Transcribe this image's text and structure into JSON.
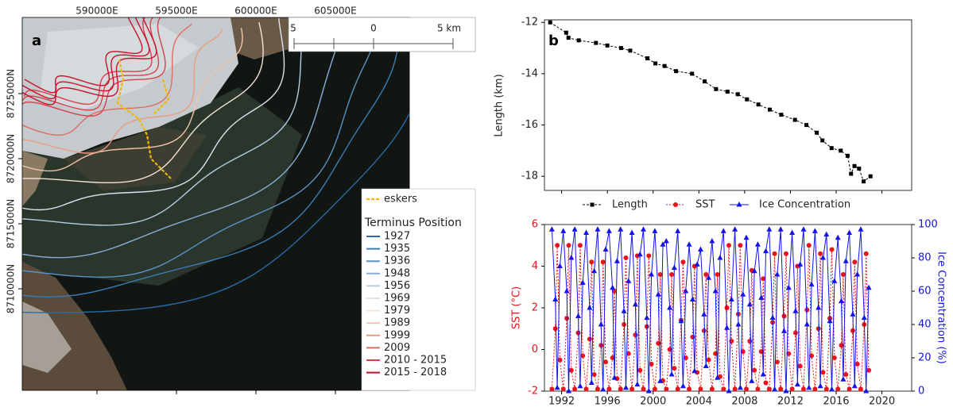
{
  "chart_data": [
    {
      "type": "map",
      "panel_label": "a",
      "xlim": [
        585300,
        609650
      ],
      "ylim": [
        8702200,
        8730850
      ],
      "xticks": [
        {
          "value": 590000,
          "label": "590000E"
        },
        {
          "value": 595000,
          "label": "595000E"
        },
        {
          "value": 600000,
          "label": "600000E"
        },
        {
          "value": 605000,
          "label": "605000E"
        }
      ],
      "yticks": [
        {
          "value": 8725000,
          "label": "8725000N"
        },
        {
          "value": 8720000,
          "label": "8720000N"
        },
        {
          "value": 8715000,
          "label": "8715000N"
        },
        {
          "value": 8710000,
          "label": "8710000N"
        }
      ],
      "scale_bar": [
        "5",
        "0",
        "5 km"
      ],
      "eskers": {
        "name": "eskers",
        "color": "#f2b705"
      },
      "legend_title": "Terminus Position",
      "series": [
        {
          "name": "1927",
          "color": "#2a6aa5"
        },
        {
          "name": "1935",
          "color": "#3a7db8"
        },
        {
          "name": "1936",
          "color": "#5b93c6"
        },
        {
          "name": "1948",
          "color": "#86afd6"
        },
        {
          "name": "1956",
          "color": "#b3cde3"
        },
        {
          "name": "1969",
          "color": "#d9e5ee"
        },
        {
          "name": "1979",
          "color": "#f4e3d7"
        },
        {
          "name": "1989",
          "color": "#f2c4a8"
        },
        {
          "name": "1999",
          "color": "#eb9b80"
        },
        {
          "name": "2009",
          "color": "#e06c62"
        },
        {
          "name": "2010 - 2015",
          "color": "#d6404f"
        },
        {
          "name": "2015 - 2018",
          "color": "#c8102e"
        }
      ]
    },
    {
      "type": "line",
      "panel_label": "b",
      "y_label": "Length (km)",
      "xlim": [
        1990.5,
        2022.6
      ],
      "ylim": [
        -18.55,
        -11.9
      ],
      "yticks": [
        -12,
        -14,
        -16,
        -18
      ],
      "x": [
        1991.0,
        1992.4,
        1992.6,
        1993.5,
        1995.0,
        1996.0,
        1997.2,
        1998.0,
        1999.5,
        2000.2,
        2001.0,
        2002.0,
        2003.4,
        2004.5,
        2005.5,
        2006.5,
        2007.4,
        2008.2,
        2009.2,
        2010.2,
        2011.2,
        2012.4,
        2013.4,
        2014.3,
        2014.8,
        2015.6,
        2016.4,
        2017.0,
        2017.3,
        2017.6,
        2018.0,
        2018.4,
        2019.0
      ],
      "series": [
        {
          "name": "Length",
          "color": "#000000",
          "values": [
            -12.0,
            -12.4,
            -12.6,
            -12.7,
            -12.8,
            -12.9,
            -13.0,
            -13.1,
            -13.4,
            -13.6,
            -13.7,
            -13.9,
            -14.0,
            -14.3,
            -14.6,
            -14.7,
            -14.8,
            -15.0,
            -15.2,
            -15.4,
            -15.6,
            -15.8,
            -16.0,
            -16.3,
            -16.6,
            -16.9,
            -17.0,
            -17.2,
            -17.9,
            -17.6,
            -17.7,
            -18.2,
            -18.0
          ]
        }
      ]
    },
    {
      "type": "dual",
      "y_label": "SST (°C)",
      "y2_label": "Ice Concentration (%)",
      "xlim": [
        1990.5,
        2022.6
      ],
      "xticks": [
        1992,
        1996,
        2000,
        2004,
        2008,
        2012,
        2016,
        2020
      ],
      "ylim": [
        -2,
        6
      ],
      "yticks": [
        -2,
        0,
        2,
        4,
        6
      ],
      "y2lim": [
        0,
        100
      ],
      "y2ticks": [
        0,
        20,
        40,
        60,
        80,
        100
      ],
      "x": [
        1991.15,
        1991.45,
        1991.62,
        1991.85,
        1992.15,
        1992.45,
        1992.62,
        1992.85,
        1993.15,
        1993.45,
        1993.62,
        1993.85,
        1994.15,
        1994.45,
        1994.62,
        1994.85,
        1995.15,
        1995.45,
        1995.62,
        1995.85,
        1996.15,
        1996.45,
        1996.62,
        1996.85,
        1997.15,
        1997.45,
        1997.62,
        1997.85,
        1998.15,
        1998.45,
        1998.62,
        1998.85,
        1999.15,
        1999.45,
        1999.62,
        1999.85,
        2000.15,
        2000.45,
        2000.62,
        2000.85,
        2001.15,
        2001.45,
        2001.62,
        2001.85,
        2002.15,
        2002.45,
        2002.62,
        2002.85,
        2003.15,
        2003.45,
        2003.62,
        2003.85,
        2004.15,
        2004.45,
        2004.62,
        2004.85,
        2005.15,
        2005.45,
        2005.62,
        2005.85,
        2006.15,
        2006.45,
        2006.62,
        2006.85,
        2007.15,
        2007.45,
        2007.62,
        2007.85,
        2008.15,
        2008.45,
        2008.62,
        2008.85,
        2009.15,
        2009.45,
        2009.62,
        2009.85,
        2010.15,
        2010.45,
        2010.62,
        2010.85,
        2011.15,
        2011.45,
        2011.62,
        2011.85,
        2012.15,
        2012.45,
        2012.62,
        2012.85,
        2013.15,
        2013.45,
        2013.62,
        2013.85,
        2014.15,
        2014.45,
        2014.62,
        2014.85,
        2015.15,
        2015.45,
        2015.62,
        2015.85,
        2016.15,
        2016.45,
        2016.62,
        2016.85,
        2017.15,
        2017.45,
        2017.62,
        2017.85,
        2018.15,
        2018.45,
        2018.62,
        2018.85
      ],
      "series": [
        {
          "name": "SST",
          "color": "#e8141c",
          "values": [
            -1.9,
            1.0,
            5.0,
            -0.5,
            -1.9,
            1.5,
            5.0,
            -1.0,
            -1.9,
            0.8,
            5.0,
            -0.3,
            -1.9,
            0.5,
            4.2,
            -1.2,
            -1.9,
            0.2,
            4.2,
            -0.6,
            -1.9,
            -0.4,
            2.8,
            -1.4,
            -1.9,
            1.2,
            4.4,
            -0.2,
            -1.9,
            0.7,
            4.5,
            -1.0,
            -1.9,
            1.1,
            4.5,
            -0.7,
            -1.9,
            0.3,
            3.6,
            -1.5,
            -1.9,
            0.0,
            3.6,
            -0.9,
            -1.9,
            1.4,
            4.2,
            -0.4,
            -1.9,
            0.6,
            4.0,
            -1.1,
            -1.9,
            0.9,
            3.6,
            -0.5,
            -1.9,
            -0.2,
            3.6,
            -1.3,
            -1.9,
            2.0,
            5.0,
            0.4,
            -1.9,
            1.7,
            5.0,
            -0.1,
            -1.9,
            0.4,
            3.8,
            -1.0,
            -1.9,
            -0.1,
            3.4,
            -1.6,
            -1.9,
            1.3,
            4.6,
            -0.6,
            -1.9,
            1.6,
            4.6,
            -0.2,
            -1.9,
            0.8,
            4.0,
            -0.8,
            -1.9,
            1.9,
            5.0,
            -0.3,
            -1.9,
            1.0,
            4.6,
            -1.1,
            -1.9,
            1.5,
            4.8,
            -0.4,
            -1.9,
            0.2,
            3.6,
            -1.2,
            -1.9,
            0.9,
            4.2,
            -0.7,
            -1.9,
            1.2,
            4.6,
            -1.0
          ]
        },
        {
          "name": "Ice Concentration",
          "color": "#1414e6",
          "axis": "y2",
          "values": [
            97,
            55,
            2,
            75,
            96,
            60,
            0,
            80,
            97,
            45,
            3,
            65,
            95,
            50,
            5,
            72,
            97,
            40,
            1,
            85,
            96,
            62,
            8,
            78,
            97,
            48,
            2,
            66,
            95,
            52,
            4,
            82,
            97,
            44,
            0,
            70,
            96,
            58,
            6,
            88,
            90,
            50,
            10,
            74,
            96,
            42,
            3,
            60,
            88,
            55,
            12,
            76,
            85,
            46,
            15,
            68,
            90,
            60,
            8,
            80,
            96,
            38,
            0,
            55,
            97,
            40,
            2,
            58,
            92,
            52,
            6,
            72,
            88,
            56,
            10,
            84,
            97,
            44,
            1,
            70,
            97,
            36,
            0,
            62,
            95,
            48,
            4,
            76,
            97,
            40,
            2,
            64,
            96,
            50,
            3,
            80,
            94,
            42,
            1,
            66,
            92,
            54,
            7,
            78,
            95,
            46,
            3,
            70,
            97,
            44,
            0,
            62
          ]
        }
      ]
    }
  ]
}
